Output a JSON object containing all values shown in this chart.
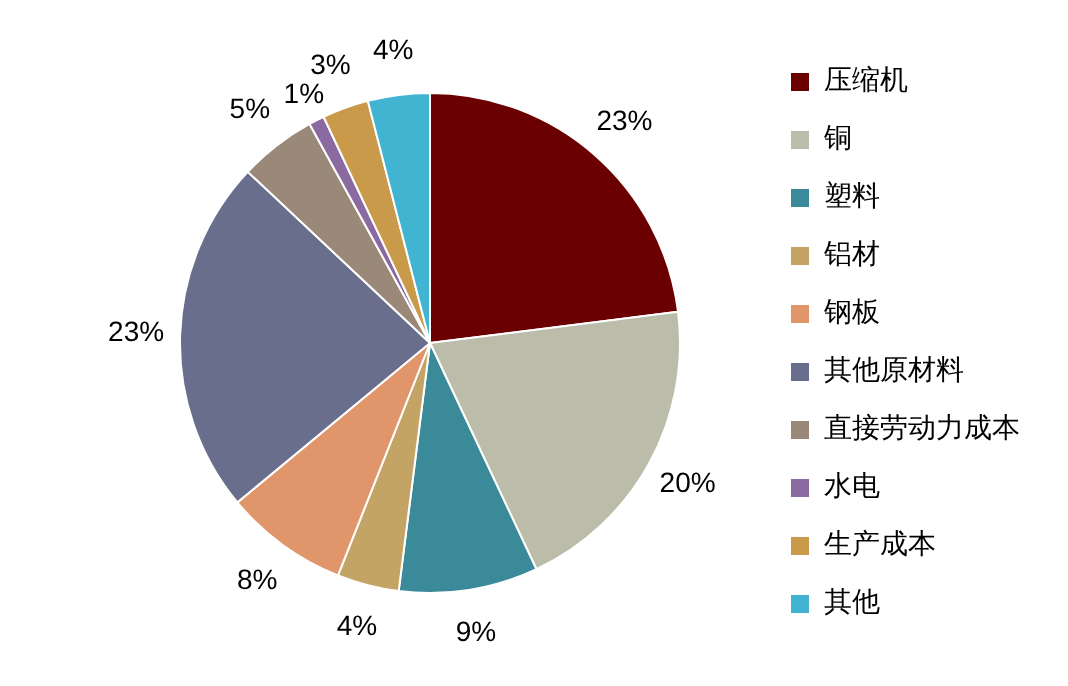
{
  "chart_data": {
    "type": "pie",
    "categories": [
      "压缩机",
      "铜",
      "塑料",
      "铝材",
      "钢板",
      "其他原材料",
      "直接劳动力成本",
      "水电",
      "生产成本",
      "其他"
    ],
    "values": [
      23,
      20,
      9,
      4,
      8,
      23,
      5,
      1,
      3,
      4
    ],
    "value_labels": [
      "23%",
      "20%",
      "9%",
      "4%",
      "8%",
      "23%",
      "5%",
      "1%",
      "3%",
      "4%"
    ],
    "colors": [
      "#6b0000",
      "#bcbcaa",
      "#3a8a9a",
      "#c4a464",
      "#e0956a",
      "#686e8c",
      "#9a8878",
      "#8a6aa0",
      "#c89a4a",
      "#40b4d0"
    ],
    "legend": "right"
  }
}
